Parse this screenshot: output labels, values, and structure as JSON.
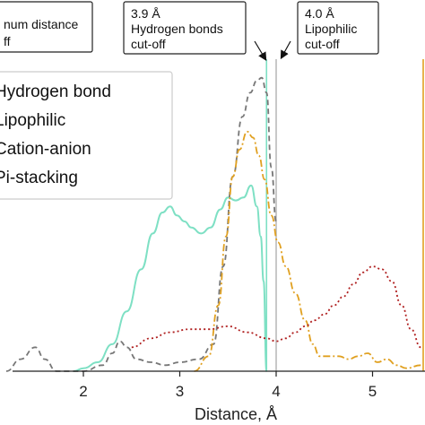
{
  "chart_data": {
    "type": "line",
    "xlabel": "Distance, Å",
    "ylabel": "",
    "xlim": [
      0.7,
      5.55
    ],
    "ylim": [
      0,
      1.0
    ],
    "x_ticks": [
      "2",
      "3",
      "4",
      "5"
    ],
    "legend": {
      "placement": "top-left",
      "entries": [
        "Hydrogen bond",
        "Lipophilic",
        "Cation-anion",
        "Pi-stacking"
      ]
    },
    "series": [
      {
        "name": "Hydrogen bond",
        "color": "#7ee0c4",
        "style": "solid",
        "x": [
          1.9,
          2.0,
          2.15,
          2.3,
          2.45,
          2.6,
          2.72,
          2.82,
          2.9,
          2.97,
          3.05,
          3.12,
          3.22,
          3.32,
          3.42,
          3.5,
          3.58,
          3.66,
          3.74,
          3.8,
          3.84,
          3.87,
          3.9
        ],
        "values": [
          0.0,
          0.01,
          0.03,
          0.09,
          0.2,
          0.34,
          0.46,
          0.53,
          0.55,
          0.52,
          0.5,
          0.48,
          0.46,
          0.48,
          0.54,
          0.58,
          0.57,
          0.58,
          0.62,
          0.55,
          0.45,
          0.3,
          0.0
        ]
      },
      {
        "name": "Lipophilic",
        "color": "#777777",
        "style": "dashed",
        "x": [
          1.2,
          1.35,
          1.5,
          1.6,
          1.72,
          1.85,
          2.0,
          2.2,
          2.3,
          2.38,
          2.45,
          2.55,
          2.7,
          2.85,
          3.0,
          3.2,
          3.35,
          3.45,
          3.55,
          3.65,
          3.73,
          3.8,
          3.85,
          3.9,
          3.95,
          4.0
        ],
        "values": [
          0.0,
          0.04,
          0.08,
          0.04,
          0.0,
          0.0,
          0.0,
          0.02,
          0.06,
          0.1,
          0.08,
          0.04,
          0.03,
          0.02,
          0.03,
          0.04,
          0.09,
          0.35,
          0.65,
          0.85,
          0.93,
          0.97,
          0.98,
          0.93,
          0.68,
          0.5
        ]
      },
      {
        "name": "Cation-anion",
        "color": "#e0a020",
        "style": "dashdot",
        "x": [
          3.15,
          3.3,
          3.4,
          3.48,
          3.55,
          3.62,
          3.7,
          3.76,
          3.82,
          3.88,
          3.95,
          4.02,
          4.1,
          4.2,
          4.3,
          4.38,
          4.45,
          4.55,
          4.65,
          4.75,
          4.85,
          4.95,
          5.05,
          5.15,
          5.25,
          5.35,
          5.5
        ],
        "values": [
          0.0,
          0.05,
          0.22,
          0.45,
          0.65,
          0.74,
          0.8,
          0.78,
          0.72,
          0.64,
          0.52,
          0.43,
          0.35,
          0.26,
          0.17,
          0.09,
          0.05,
          0.05,
          0.05,
          0.04,
          0.05,
          0.06,
          0.03,
          0.04,
          0.02,
          0.01,
          0.02
        ]
      },
      {
        "name": "Pi-stacking",
        "color": "#b02020",
        "style": "dotted",
        "x": [
          2.5,
          2.7,
          2.9,
          3.1,
          3.3,
          3.5,
          3.7,
          3.9,
          4.0,
          4.1,
          4.2,
          4.3,
          4.4,
          4.5,
          4.6,
          4.7,
          4.8,
          4.9,
          5.0,
          5.1,
          5.2,
          5.3,
          5.4,
          5.5
        ],
        "values": [
          0.08,
          0.11,
          0.13,
          0.14,
          0.14,
          0.15,
          0.13,
          0.11,
          0.1,
          0.11,
          0.13,
          0.15,
          0.17,
          0.19,
          0.22,
          0.25,
          0.29,
          0.33,
          0.35,
          0.34,
          0.3,
          0.22,
          0.14,
          0.08
        ]
      }
    ],
    "vertical_lines": [
      {
        "x": 3.9,
        "color": "#7ee0c4"
      },
      {
        "x": 4.0,
        "color": "#bbbbbb"
      },
      {
        "x": 5.55,
        "color": "#e0a020"
      }
    ],
    "annotations": [
      {
        "lines": [
          "num distance",
          "ff"
        ]
      },
      {
        "lines": [
          "3.9 Å",
          "Hydrogen bonds",
          "cut-off"
        ],
        "points_to_x": 3.9
      },
      {
        "lines": [
          "4.0 Å",
          "Lipophilic",
          "cut-off"
        ],
        "points_to_x": 4.0
      }
    ]
  }
}
